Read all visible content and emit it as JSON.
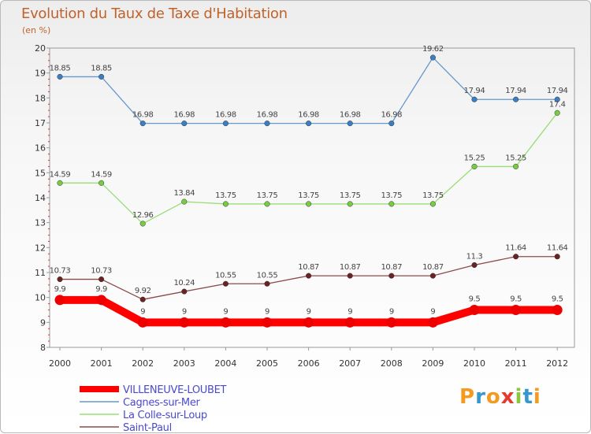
{
  "chart_data": {
    "type": "line",
    "title": "Evolution du Taux de Taxe d'Habitation",
    "subtitle": "(en %)",
    "xlabel": "",
    "ylabel": "",
    "ylim": [
      8,
      20
    ],
    "yticks": [
      "8",
      "9",
      "10",
      "11",
      "12",
      "13",
      "14",
      "15",
      "16",
      "17",
      "18",
      "19",
      "20"
    ],
    "categories": [
      "2000",
      "2001",
      "2002",
      "2003",
      "2004",
      "2005",
      "2006",
      "2007",
      "2008",
      "2009",
      "2010",
      "2011",
      "2012"
    ],
    "series": [
      {
        "name": "Cagnes-sur-Mer",
        "color": "#6699cc",
        "marker": "#3a7fc4",
        "values": [
          18.85,
          18.85,
          16.98,
          16.98,
          16.98,
          16.98,
          16.98,
          16.98,
          16.98,
          19.62,
          17.94,
          17.94,
          17.94
        ],
        "labels": [
          "18.85",
          "18.85",
          "16.98",
          "16.98",
          "16.98",
          "16.98",
          "16.98",
          "16.98",
          "16.98",
          "19.62",
          "17.94",
          "17.94",
          "17.94"
        ]
      },
      {
        "name": "La Colle-sur-Loup",
        "color": "#99dd77",
        "marker": "#77cc44",
        "values": [
          14.59,
          14.59,
          12.96,
          13.84,
          13.75,
          13.75,
          13.75,
          13.75,
          13.75,
          13.75,
          15.25,
          15.25,
          17.4
        ],
        "labels": [
          "14.59",
          "14.59",
          "12.96",
          "13.84",
          "13.75",
          "13.75",
          "13.75",
          "13.75",
          "13.75",
          "13.75",
          "15.25",
          "15.25",
          "17.4"
        ]
      },
      {
        "name": "Saint-Paul",
        "color": "#8b4a4a",
        "marker": "#6b2222",
        "values": [
          10.73,
          10.73,
          9.92,
          10.24,
          10.55,
          10.55,
          10.87,
          10.87,
          10.87,
          10.87,
          11.3,
          11.64,
          11.64
        ],
        "labels": [
          "10.73",
          "10.73",
          "9.92",
          "10.24",
          "10.55",
          "10.55",
          "10.87",
          "10.87",
          "10.87",
          "10.87",
          "11.3",
          "11.64",
          "11.64"
        ]
      },
      {
        "name": "VILLENEUVE-LOUBET",
        "color": "#ff0000",
        "marker": "#ee0000",
        "values": [
          9.9,
          9.9,
          9,
          9,
          9,
          9,
          9,
          9,
          9,
          9,
          9.5,
          9.5,
          9.5
        ],
        "labels": [
          "9.9",
          "9.9",
          "9",
          "9",
          "9",
          "9",
          "9",
          "9",
          "9",
          "9",
          "9.5",
          "9.5",
          "9.5"
        ]
      }
    ],
    "legend": [
      "VILLENEUVE-LOUBET",
      "Cagnes-sur-Mer",
      "La Colle-sur-Loup",
      "Saint-Paul"
    ]
  },
  "logo": {
    "text": "Proxiti",
    "letter_colors": [
      "#f29b1f",
      "#3399cc",
      "#f29b1f",
      "#e63a2e",
      "#8cc63f",
      "#3399cc",
      "#f29b1f"
    ]
  }
}
